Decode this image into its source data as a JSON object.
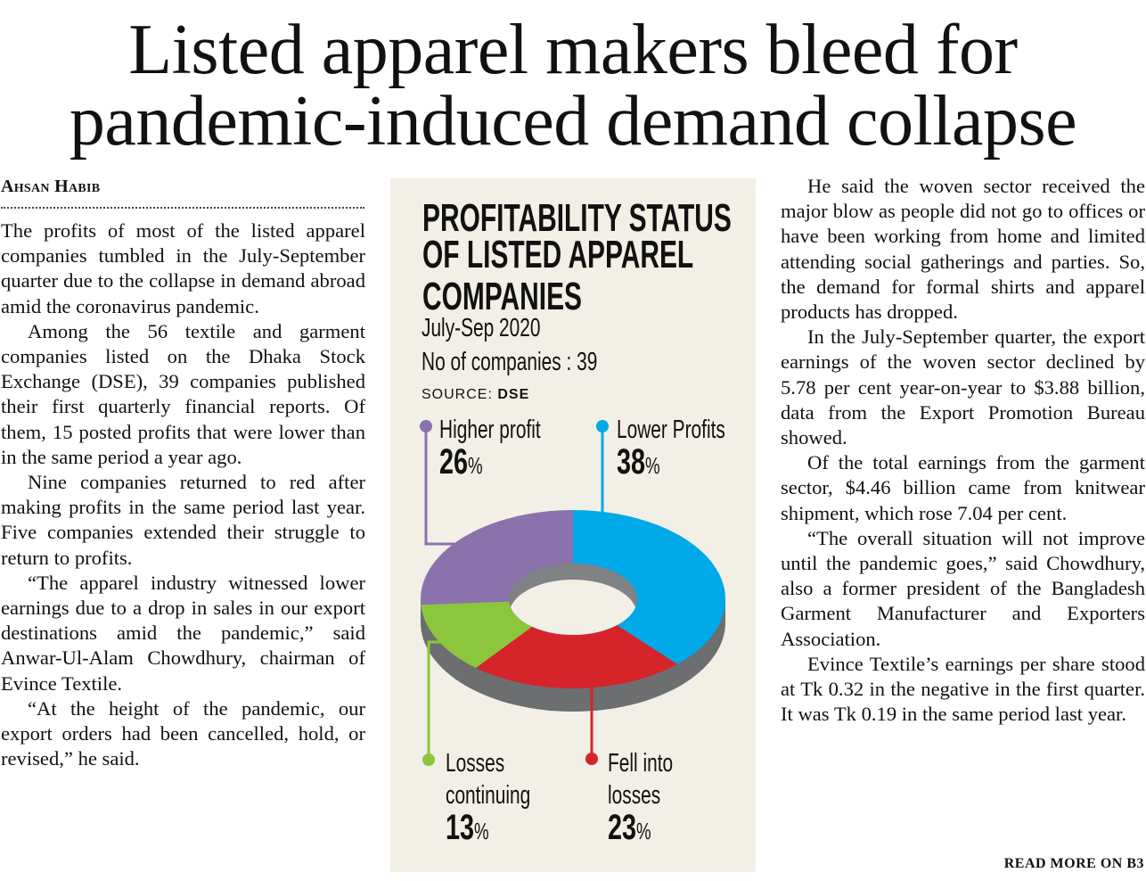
{
  "headline": {
    "line1": "Listed apparel makers bleed for",
    "line2": "pandemic-induced demand collapse"
  },
  "byline": "Ahsan Habib",
  "left_column": [
    "The profits of most of the listed apparel companies tumbled in the July-September quarter due to the collapse in demand abroad amid the coronavirus pandemic.",
    "Among the 56 textile and garment companies listed on the Dhaka Stock Exchange (DSE), 39 companies published their first quarterly financial reports. Of them, 15 posted profits that were lower than in the same period a year ago.",
    "Nine companies returned to red after making profits in the same period last year. Five companies extended their struggle to return to profits.",
    "“The apparel industry witnessed lower earnings due to a drop in sales in our export destinations amid the pandemic,” said Anwar-Ul-Alam Chowdhury, chairman of Evince Textile.",
    "“At the height of the pandemic, our export orders had been cancelled, hold, or revised,” he said."
  ],
  "right_column": [
    "He said the woven sector received the major blow as people did not go to offices or have been working from home and limited attending social gatherings and parties. So, the demand for formal shirts and apparel products has dropped.",
    "In the July-September quarter, the export earnings of the woven sector declined by 5.78 per cent year-on-year to $3.88 billion, data from the Export Promotion Bureau showed.",
    "Of the total earnings from the garment sector, $4.46 billion came from knitwear shipment, which rose 7.04 per cent.",
    "“The overall situation will not improve until the pandemic goes,” said Chowdhury, also a former president of the Bangladesh Garment Manufacturer and Exporters Association.",
    "Evince Textile’s earnings per share stood at Tk 0.32 in the negative in the first quarter. It was Tk 0.19 in the same period last year."
  ],
  "read_more": "READ MORE ON B3",
  "chart_data": {
    "type": "pie",
    "title": "PROFITABILITY STATUS OF LISTED APPAREL COMPANIES",
    "title_lines": [
      "PROFITABILITY STATUS",
      "OF LISTED APPAREL",
      "COMPANIES"
    ],
    "period": "July-Sep 2020",
    "companies": "No of companies : 39",
    "source_label": "SOURCE:",
    "source": "DSE",
    "pct_sign": "%",
    "slices": [
      {
        "label": "Lower Profits",
        "label_lines": [
          "Lower Profits"
        ],
        "value": 38,
        "color": "#00a9e8"
      },
      {
        "label": "Fell into losses",
        "label_lines": [
          "Fell into",
          "losses"
        ],
        "value": 23,
        "color": "#d5232a"
      },
      {
        "label": "Losses continuing",
        "label_lines": [
          "Losses",
          "continuing"
        ],
        "value": 13,
        "color": "#8cc63f"
      },
      {
        "label": "Higher profit",
        "label_lines": [
          "Higher profit"
        ],
        "value": 26,
        "color": "#8b72ad"
      }
    ]
  }
}
